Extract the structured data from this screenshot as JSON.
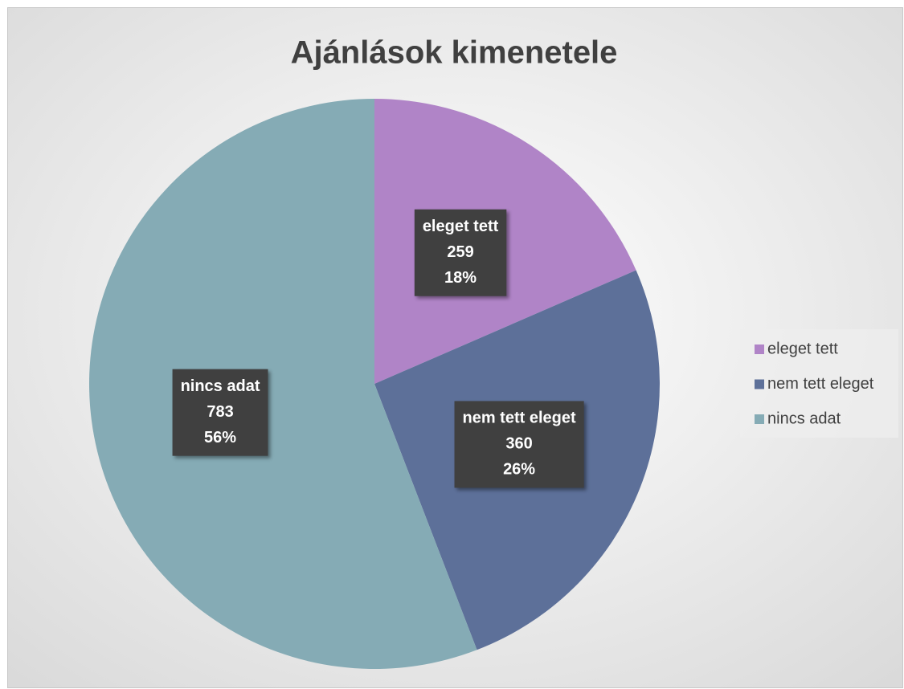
{
  "chart_data": {
    "type": "pie",
    "title": "Ajánlások kimenetele",
    "categories": [
      "eleget tett",
      "nem tett eleget",
      "nincs adat"
    ],
    "values": [
      259,
      360,
      783
    ],
    "percent_labels": [
      "18%",
      "26%",
      "56%"
    ],
    "colors": [
      "#b084c7",
      "#5d7099",
      "#85abb5"
    ],
    "legend": "right"
  }
}
